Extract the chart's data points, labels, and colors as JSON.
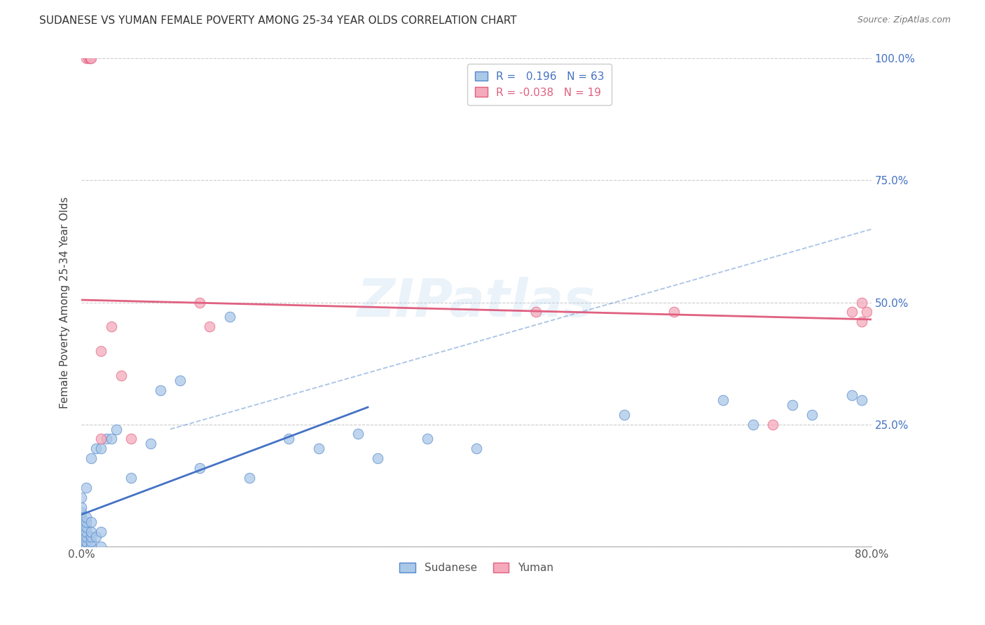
{
  "title": "SUDANESE VS YUMAN FEMALE POVERTY AMONG 25-34 YEAR OLDS CORRELATION CHART",
  "source": "Source: ZipAtlas.com",
  "ylabel": "Female Poverty Among 25-34 Year Olds",
  "xlim": [
    0.0,
    0.8
  ],
  "ylim": [
    0.0,
    1.0
  ],
  "xticks": [
    0.0,
    0.1,
    0.2,
    0.3,
    0.4,
    0.5,
    0.6,
    0.7,
    0.8
  ],
  "yticks": [
    0.0,
    0.25,
    0.5,
    0.75,
    1.0
  ],
  "background_color": "#ffffff",
  "sudanese_color": "#aac8e8",
  "yuman_color": "#f5aabb",
  "sudanese_edge_color": "#5588cc",
  "yuman_edge_color": "#e06080",
  "sudanese_line_color": "#4472c4",
  "yuman_line_color": "#e06080",
  "grid_color": "#cccccc",
  "sudanese_x": [
    0.0,
    0.0,
    0.0,
    0.0,
    0.0,
    0.0,
    0.0,
    0.0,
    0.0,
    0.0,
    0.0,
    0.0,
    0.0,
    0.0,
    0.0,
    0.0,
    0.0,
    0.0,
    0.0,
    0.0,
    0.005,
    0.005,
    0.005,
    0.005,
    0.005,
    0.005,
    0.005,
    0.005,
    0.005,
    0.01,
    0.01,
    0.01,
    0.01,
    0.01,
    0.01,
    0.015,
    0.015,
    0.02,
    0.02,
    0.02,
    0.025,
    0.03,
    0.035,
    0.05,
    0.07,
    0.08,
    0.1,
    0.12,
    0.15,
    0.17,
    0.21,
    0.24,
    0.28,
    0.3,
    0.35,
    0.4,
    0.55,
    0.65,
    0.68,
    0.72,
    0.74,
    0.78,
    0.79
  ],
  "sudanese_y": [
    0.0,
    0.0,
    0.0,
    0.0,
    0.0,
    0.0,
    0.0,
    0.0,
    0.0,
    0.0,
    0.02,
    0.02,
    0.03,
    0.03,
    0.04,
    0.05,
    0.06,
    0.07,
    0.08,
    0.1,
    0.0,
    0.0,
    0.01,
    0.02,
    0.03,
    0.04,
    0.05,
    0.06,
    0.12,
    0.0,
    0.01,
    0.02,
    0.03,
    0.05,
    0.18,
    0.02,
    0.2,
    0.0,
    0.03,
    0.2,
    0.22,
    0.22,
    0.24,
    0.14,
    0.21,
    0.32,
    0.34,
    0.16,
    0.47,
    0.14,
    0.22,
    0.2,
    0.23,
    0.18,
    0.22,
    0.2,
    0.27,
    0.3,
    0.25,
    0.29,
    0.27,
    0.31,
    0.3
  ],
  "yuman_x": [
    0.005,
    0.007,
    0.008,
    0.009,
    0.01,
    0.02,
    0.02,
    0.03,
    0.04,
    0.05,
    0.12,
    0.13,
    0.46,
    0.6,
    0.7,
    0.78,
    0.79,
    0.79,
    0.795
  ],
  "yuman_y": [
    1.0,
    1.0,
    1.0,
    1.0,
    1.0,
    0.22,
    0.4,
    0.45,
    0.35,
    0.22,
    0.5,
    0.45,
    0.48,
    0.48,
    0.25,
    0.48,
    0.46,
    0.5,
    0.48
  ],
  "dashed_line_x": [
    0.09,
    0.8
  ],
  "dashed_line_y": [
    0.24,
    0.65
  ],
  "sudanese_trend_x": [
    0.0,
    0.29
  ],
  "sudanese_trend_y": [
    0.065,
    0.285
  ],
  "yuman_trend_x": [
    0.0,
    0.8
  ],
  "yuman_trend_y": [
    0.505,
    0.465
  ]
}
